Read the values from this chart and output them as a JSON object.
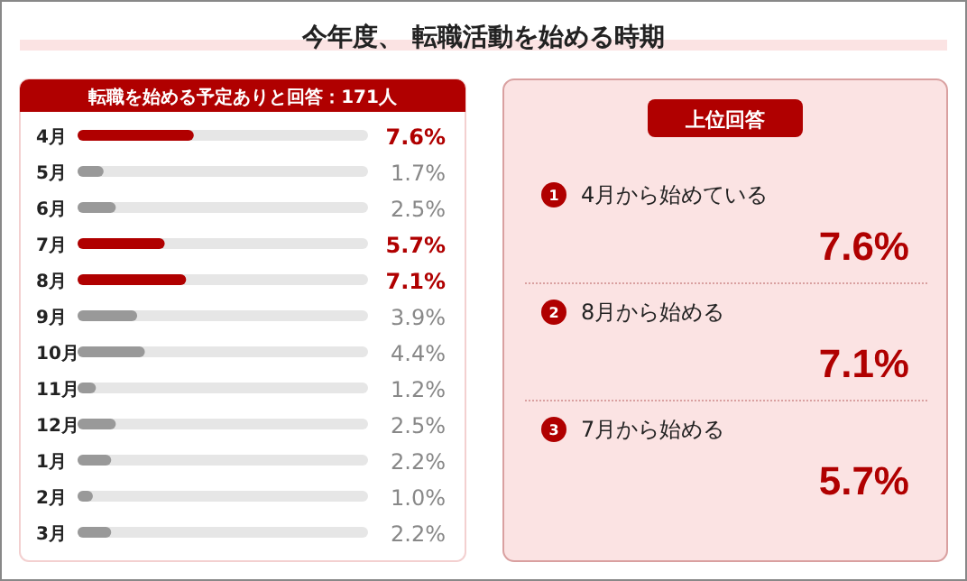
{
  "chart_data": [
    {
      "type": "bar",
      "orientation": "horizontal",
      "title": "今年度、 転職活動を始める時期",
      "subtitle": "転職を始める予定ありと回答：171人",
      "categories": [
        "4月",
        "5月",
        "6月",
        "7月",
        "8月",
        "9月",
        "10月",
        "11月",
        "12月",
        "1月",
        "2月",
        "3月"
      ],
      "values": [
        7.6,
        1.7,
        2.5,
        5.7,
        7.1,
        3.9,
        4.4,
        1.2,
        2.5,
        2.2,
        1.0,
        2.2
      ],
      "colors": [
        "#b00000",
        "#999999",
        "#999999",
        "#b00000",
        "#b00000",
        "#999999",
        "#999999",
        "#999999",
        "#999999",
        "#999999",
        "#999999",
        "#999999"
      ],
      "value_labels": [
        "7.6%",
        "1.7%",
        "2.5%",
        "5.7%",
        "7.1%",
        "3.9%",
        "4.4%",
        "1.2%",
        "2.5%",
        "2.2%",
        "1.0%",
        "2.2%"
      ],
      "xlim": [
        0,
        19
      ],
      "grid": false
    },
    {
      "type": "other",
      "title": "上位回答",
      "categories": [
        "4月から始めている",
        "8月から始める",
        "7月から始める"
      ],
      "annotations": [
        "1",
        "2",
        "3"
      ],
      "value_labels": [
        "7.6%",
        "7.1%",
        "5.7%"
      ]
    }
  ]
}
